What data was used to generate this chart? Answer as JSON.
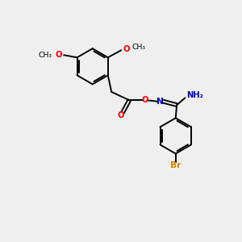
{
  "bg_color": "#efefef",
  "bond_color": "#000000",
  "atom_colors": {
    "O": "#ff0000",
    "N": "#0000cc",
    "Br": "#cc8800",
    "H": "#777777",
    "C": "#000000"
  },
  "lw": 1.4,
  "fs": 7.2,
  "r": 0.75,
  "xlim": [
    0,
    10
  ],
  "ylim": [
    0,
    10
  ]
}
